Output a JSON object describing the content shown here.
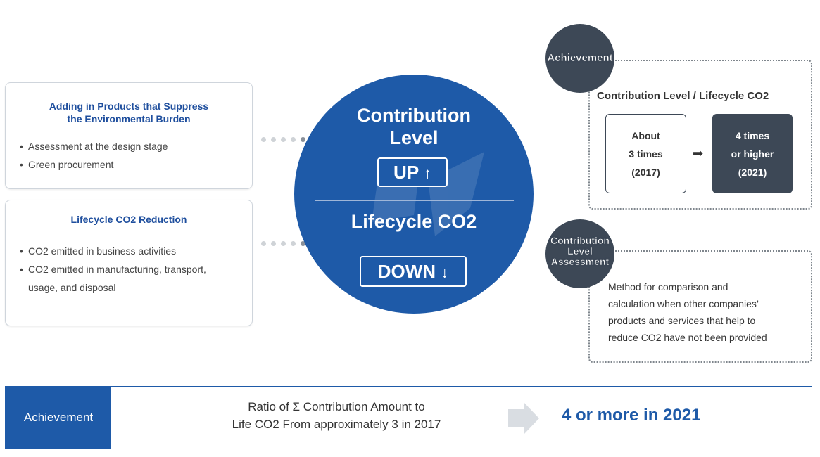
{
  "cards": [
    {
      "title_line1": "Adding in Products that Suppress",
      "title_line2": "the Environmental Burden",
      "items": [
        "Assessment at the design stage",
        "Green procurement"
      ]
    },
    {
      "title_line1": "Lifecycle CO2 Reduction",
      "items": [
        "CO2 emitted in business activities",
        "CO2 emitted in manufacturing, transport,",
        "usage, and disposal"
      ]
    }
  ],
  "circle": {
    "top_line1": "Contribution",
    "top_line2": "Level",
    "up_label": "UP",
    "up_icon": "↑",
    "bottom_title": "Lifecycle CO2",
    "down_label": "DOWN",
    "down_icon": "↓"
  },
  "achievement_panel": {
    "badge": "Achievement",
    "title": "Contribution Level / Lifecycle CO2",
    "before": [
      "About",
      "3 times",
      "(2017)"
    ],
    "arrow": "➡",
    "after": [
      "4 times",
      "or higher",
      "(2021)"
    ]
  },
  "assessment_panel": {
    "badge_line1": "Contribution",
    "badge_line2": "Level",
    "badge_line3": "Assessment",
    "text_lines": [
      "Method for comparison and",
      "calculation when other companies’",
      "products and services that help to",
      "reduce CO2 have not been provided"
    ]
  },
  "bottom_bar": {
    "label": "Achievement",
    "ratio_line1": "Ratio of Σ Contribution Amount to",
    "ratio_line2": "Life CO2 From approximately 3 in 2017",
    "result": "4 or more in 2021"
  },
  "colors": {
    "primary_blue": "#1e5aa8",
    "dark_slate": "#3d4856"
  }
}
